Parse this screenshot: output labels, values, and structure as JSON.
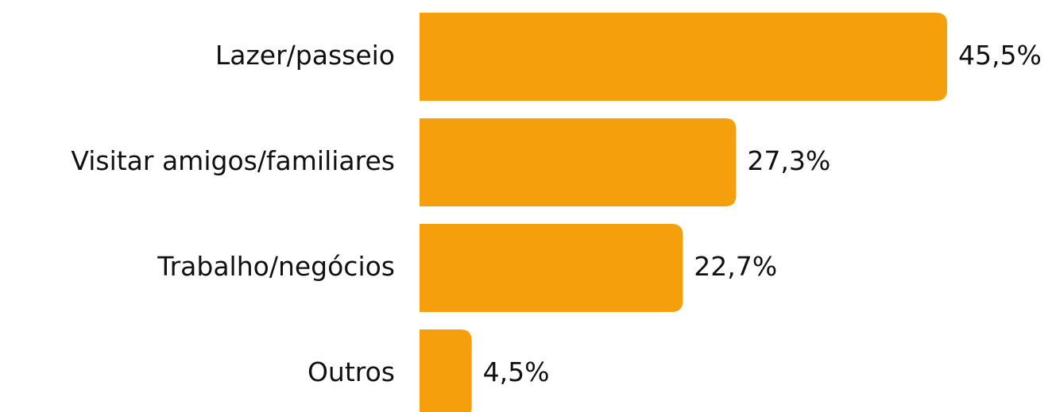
{
  "chart_data": {
    "type": "bar",
    "orientation": "horizontal",
    "categories": [
      "Lazer/passeio",
      "Visitar amigos/familiares",
      "Trabalho/negócios",
      "Outros"
    ],
    "values": [
      45.5,
      27.3,
      22.7,
      4.5
    ],
    "value_labels": [
      "45,5%",
      "27,3%",
      "22,7%",
      "4,5%"
    ],
    "color": "#f59f0c"
  }
}
